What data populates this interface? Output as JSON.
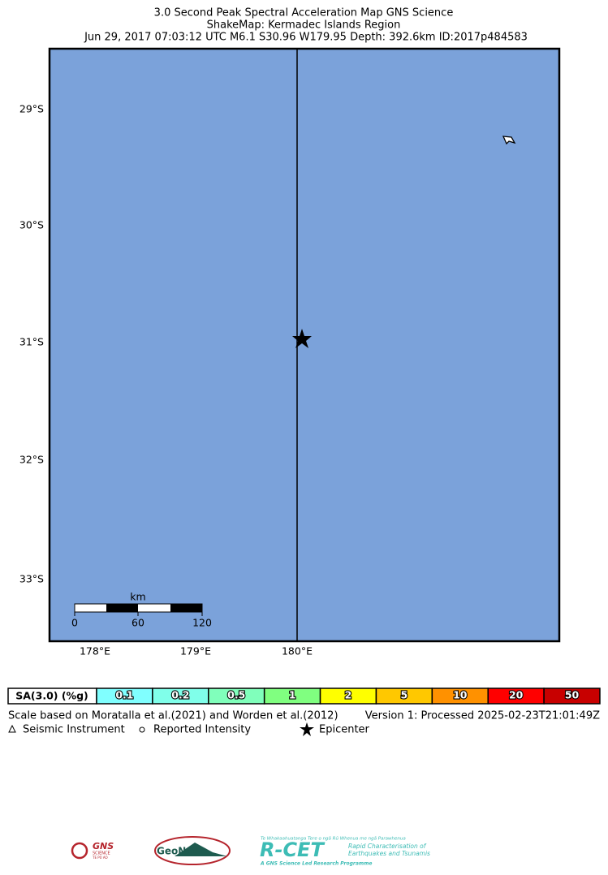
{
  "header": {
    "lines": [
      "3.0 Second Peak Spectral Acceleration Map GNS Science",
      "ShakeMap: Kermadec Islands Region",
      "Jun 29, 2017 07:03:12 UTC M6.1 S30.96 W179.95 Depth: 392.6km ID:2017p484583"
    ]
  },
  "map": {
    "lat_labels": [
      "29°S",
      "30°S",
      "31°S",
      "32°S",
      "33°S"
    ],
    "lon_labels": [
      "178°E",
      "179°E",
      "180°E"
    ],
    "scale_bar": {
      "unit": "km",
      "ticks": [
        "0",
        "60",
        "120"
      ]
    }
  },
  "legend": {
    "label": "SA(3.0) (%g)",
    "bins": [
      {
        "label": "0.1",
        "color": "#80ffff"
      },
      {
        "label": "0.2",
        "color": "#80ffea"
      },
      {
        "label": "0.5",
        "color": "#80ffbb"
      },
      {
        "label": "1",
        "color": "#80ff80"
      },
      {
        "label": "2",
        "color": "#ffff00"
      },
      {
        "label": "5",
        "color": "#ffc800"
      },
      {
        "label": "10",
        "color": "#ff9100"
      },
      {
        "label": "20",
        "color": "#ff0000"
      },
      {
        "label": "50",
        "color": "#c80000"
      }
    ]
  },
  "notes": {
    "scale": "Scale based on Moratalla et al.(2021) and Worden et al.(2012)",
    "version": "Version 1: Processed 2025-02-23T21:01:49Z"
  },
  "symbols": [
    "Seismic Instrument",
    "Reported Intensity",
    "Epicenter"
  ],
  "logos": {
    "gns": [
      "GNS",
      "SCIENCE",
      "TE PŪ AO"
    ],
    "geonet": "GeoNet",
    "rcet": {
      "tagline": "Te Whakaahuatanga Tere o ngā Rū Whenua me ngā Parawhenua",
      "name": "R-CET",
      "sub": [
        "Rapid Characterisation of",
        "Earthquakes and Tsunamis"
      ],
      "footer": "A GNS Science Led Research Programme"
    }
  }
}
